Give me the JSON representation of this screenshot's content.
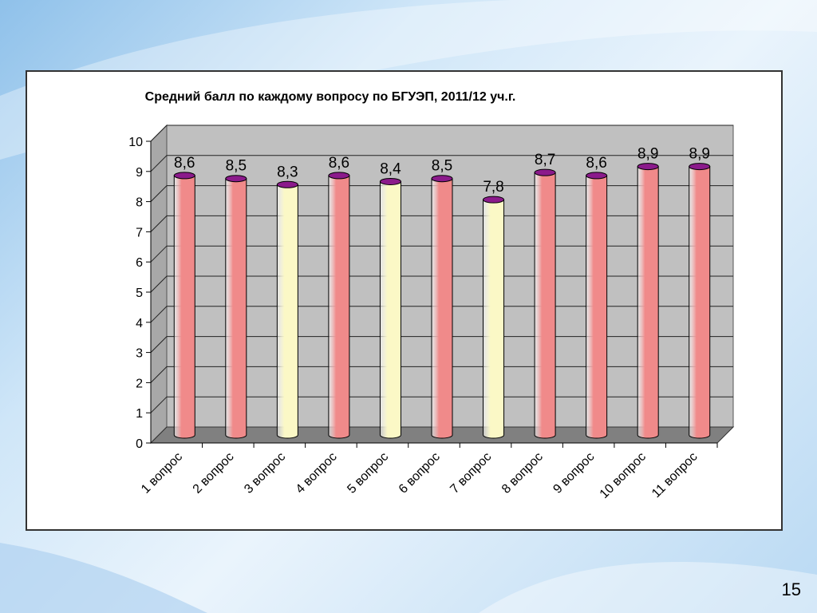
{
  "slide": {
    "number": "15"
  },
  "chart_data": {
    "type": "bar",
    "title": "Средний балл по каждому вопросу по БГУЭП, 2011/12 уч.г.",
    "categories": [
      "1 вопрос",
      "2 вопрос",
      "3 вопрос",
      "4 вопрос",
      "5 вопрос",
      "6 вопрос",
      "7 вопрос",
      "8 вопрос",
      "9 вопрос",
      "10 вопрос",
      "11 вопрос"
    ],
    "values": [
      8.6,
      8.5,
      8.3,
      8.6,
      8.4,
      8.5,
      7.8,
      8.7,
      8.6,
      8.9,
      8.9
    ],
    "data_labels": [
      "8,6",
      "8,5",
      "8,3",
      "8,6",
      "8,4",
      "8,5",
      "7,8",
      "8,7",
      "8,6",
      "8,9",
      "8,9"
    ],
    "bar_colors": [
      "#f08a8a",
      "#f08a8a",
      "#fbf8c6",
      "#f08a8a",
      "#fbf8c6",
      "#f08a8a",
      "#fbf8c6",
      "#f08a8a",
      "#f08a8a",
      "#f08a8a",
      "#f08a8a"
    ],
    "cap_color": "#8b1a8b",
    "wall_color": "#c0c0c0",
    "floor_color": "#808080",
    "ylim": [
      0,
      10
    ],
    "yticks": [
      "0",
      "1",
      "2",
      "3",
      "4",
      "5",
      "6",
      "7",
      "8",
      "9",
      "10"
    ],
    "grid": true,
    "legend": "none"
  }
}
